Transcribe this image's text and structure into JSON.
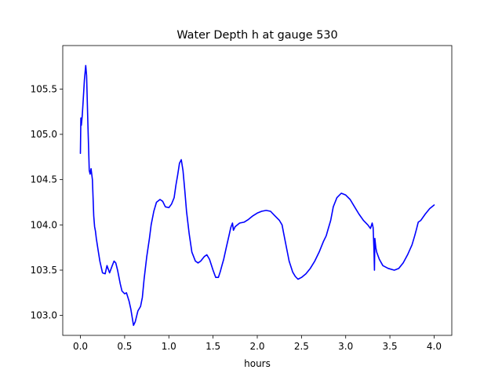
{
  "chart_data": {
    "type": "line",
    "title": "Water Depth h at gauge 530",
    "xlabel": "hours",
    "ylabel": "",
    "xlim": [
      -0.2,
      4.2
    ],
    "ylim": [
      102.78,
      105.98
    ],
    "xticks": [
      0.0,
      0.5,
      1.0,
      1.5,
      2.0,
      2.5,
      3.0,
      3.5,
      4.0
    ],
    "xtick_labels": [
      "0.0",
      "0.5",
      "1.0",
      "1.5",
      "2.0",
      "2.5",
      "3.0",
      "3.5",
      "4.0"
    ],
    "yticks": [
      103.0,
      103.5,
      104.0,
      104.5,
      105.0,
      105.5
    ],
    "ytick_labels": [
      "103.0",
      "103.5",
      "104.0",
      "104.5",
      "105.0",
      "105.5"
    ],
    "grid": false,
    "legend": "none",
    "series": [
      {
        "color": "#0000ff",
        "x": [
          0.0,
          0.005,
          0.01,
          0.02,
          0.03,
          0.045,
          0.06,
          0.07,
          0.085,
          0.1,
          0.11,
          0.12,
          0.135,
          0.15,
          0.16,
          0.17,
          0.18,
          0.2,
          0.22,
          0.25,
          0.28,
          0.3,
          0.33,
          0.36,
          0.38,
          0.4,
          0.42,
          0.45,
          0.47,
          0.5,
          0.52,
          0.55,
          0.57,
          0.6,
          0.62,
          0.65,
          0.68,
          0.7,
          0.72,
          0.75,
          0.78,
          0.8,
          0.83,
          0.86,
          0.9,
          0.93,
          0.96,
          1.0,
          1.03,
          1.06,
          1.08,
          1.1,
          1.12,
          1.14,
          1.16,
          1.18,
          1.2,
          1.23,
          1.26,
          1.3,
          1.33,
          1.36,
          1.4,
          1.43,
          1.46,
          1.5,
          1.53,
          1.56,
          1.58,
          1.6,
          1.62,
          1.65,
          1.68,
          1.7,
          1.72,
          1.73,
          1.75,
          1.8,
          1.85,
          1.9,
          1.95,
          2.0,
          2.05,
          2.1,
          2.15,
          2.2,
          2.25,
          2.28,
          2.3,
          2.33,
          2.36,
          2.4,
          2.43,
          2.46,
          2.5,
          2.55,
          2.6,
          2.65,
          2.7,
          2.75,
          2.78,
          2.8,
          2.83,
          2.86,
          2.9,
          2.95,
          3.0,
          3.05,
          3.1,
          3.15,
          3.2,
          3.25,
          3.28,
          3.3,
          3.31,
          3.32,
          3.325,
          3.33,
          3.34,
          3.35,
          3.38,
          3.42,
          3.48,
          3.55,
          3.6,
          3.65,
          3.7,
          3.75,
          3.78,
          3.8,
          3.82,
          3.85,
          3.9,
          3.95,
          4.0
        ],
        "y": [
          104.79,
          105.18,
          105.1,
          105.2,
          105.35,
          105.6,
          105.76,
          105.65,
          105.1,
          104.6,
          104.56,
          104.62,
          104.5,
          104.1,
          103.98,
          103.93,
          103.85,
          103.72,
          103.6,
          103.47,
          103.46,
          103.55,
          103.47,
          103.55,
          103.6,
          103.58,
          103.5,
          103.35,
          103.27,
          103.24,
          103.25,
          103.16,
          103.07,
          102.89,
          102.93,
          103.05,
          103.1,
          103.2,
          103.4,
          103.65,
          103.85,
          104.0,
          104.15,
          104.25,
          104.28,
          104.26,
          104.2,
          104.19,
          104.23,
          104.3,
          104.44,
          104.55,
          104.68,
          104.72,
          104.6,
          104.38,
          104.15,
          103.9,
          103.7,
          103.6,
          103.58,
          103.6,
          103.65,
          103.67,
          103.62,
          103.5,
          103.42,
          103.42,
          103.48,
          103.55,
          103.62,
          103.75,
          103.88,
          103.97,
          104.02,
          103.94,
          103.98,
          104.02,
          104.03,
          104.06,
          104.1,
          104.13,
          104.15,
          104.16,
          104.15,
          104.1,
          104.05,
          104.0,
          103.9,
          103.75,
          103.6,
          103.48,
          103.43,
          103.4,
          103.42,
          103.46,
          103.52,
          103.6,
          103.7,
          103.82,
          103.88,
          103.95,
          104.05,
          104.2,
          104.3,
          104.35,
          104.33,
          104.28,
          104.2,
          104.12,
          104.05,
          104.0,
          103.96,
          104.02,
          103.97,
          103.72,
          103.5,
          103.85,
          103.75,
          103.7,
          103.62,
          103.55,
          103.52,
          103.5,
          103.52,
          103.58,
          103.67,
          103.78,
          103.88,
          103.95,
          104.03,
          104.05,
          104.12,
          104.18,
          104.22
        ]
      }
    ]
  }
}
